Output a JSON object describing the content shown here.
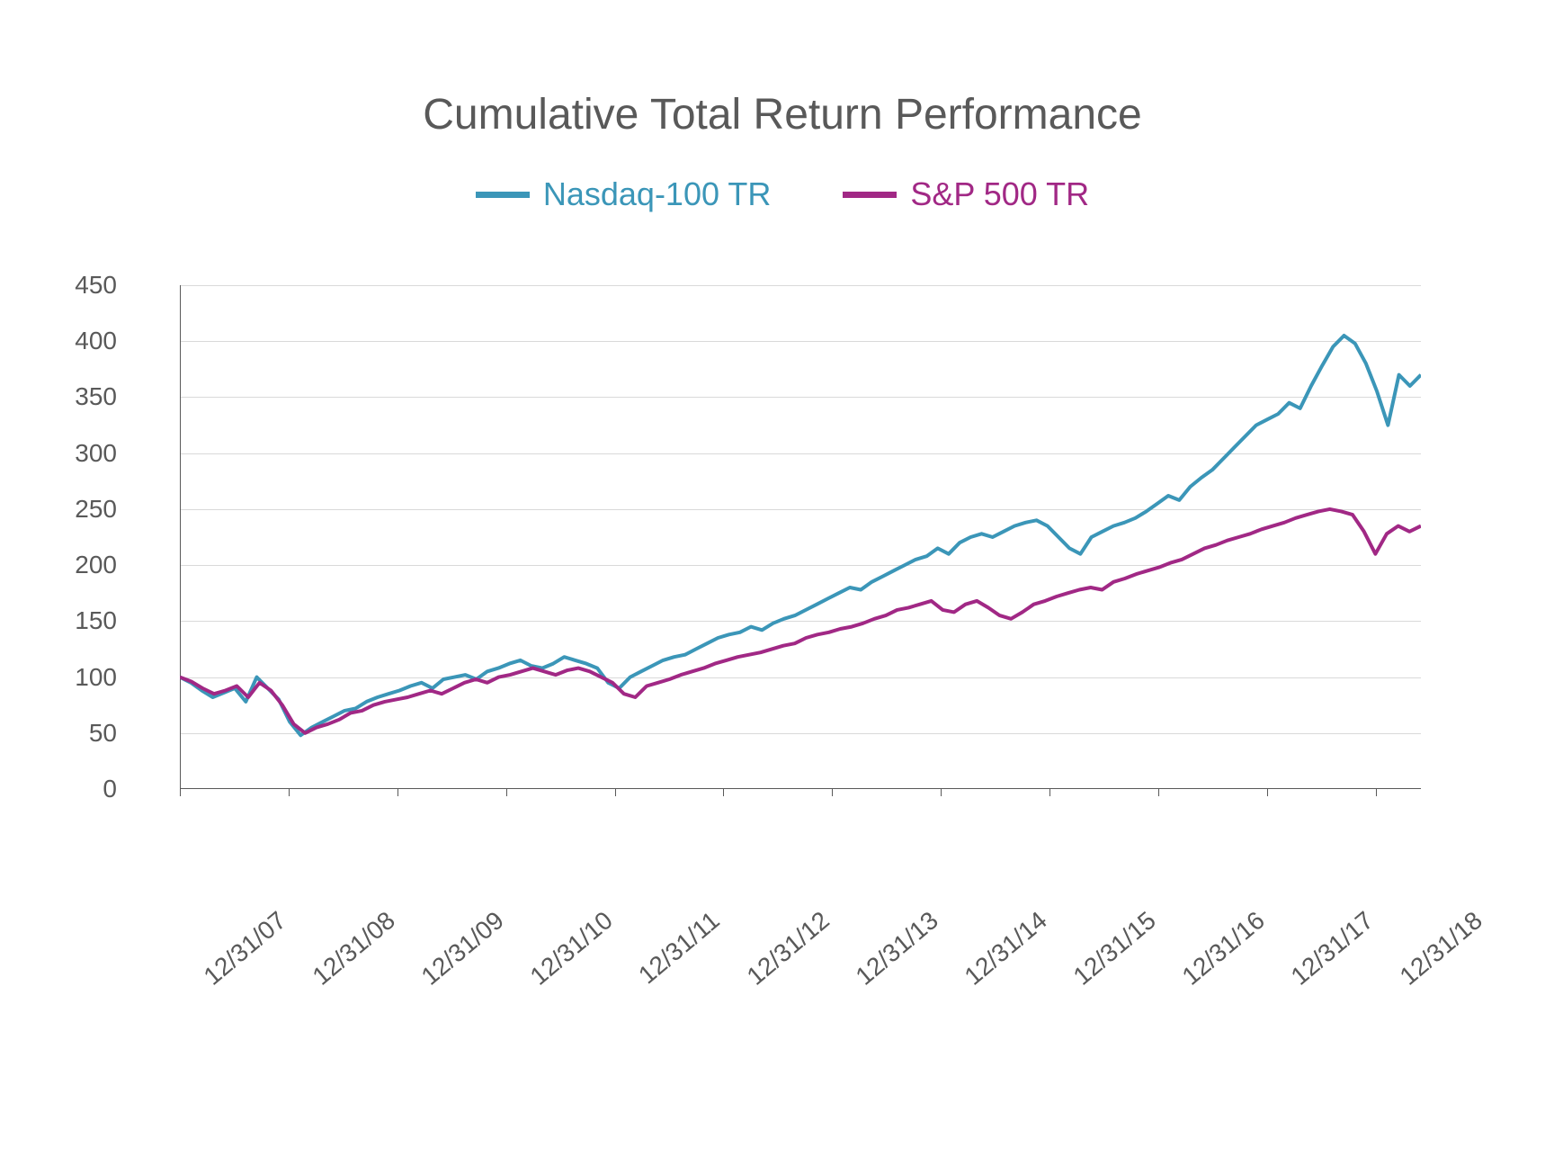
{
  "chart": {
    "type": "line",
    "title": "Cumulative Total Return Performance",
    "title_color": "#595959",
    "title_fontsize": 48,
    "background_color": "#ffffff",
    "grid_color": "#d9d9d9",
    "axis_color": "#595959",
    "label_color": "#595959",
    "label_fontsize": 28,
    "ylim": [
      0,
      450
    ],
    "ytick_step": 50,
    "yticks": [
      0,
      50,
      100,
      150,
      200,
      250,
      300,
      350,
      400,
      450
    ],
    "xticks": [
      "12/31/07",
      "12/31/08",
      "12/31/09",
      "12/31/10",
      "12/31/11",
      "12/31/12",
      "12/31/13",
      "12/31/14",
      "12/31/15",
      "12/31/16",
      "12/31/17",
      "12/31/18"
    ],
    "line_width": 4,
    "legend_position": "top-center",
    "legend_fontsize": 36,
    "series": [
      {
        "name": "Nasdaq-100 TR",
        "color": "#3b96b8",
        "data": [
          100,
          95,
          88,
          82,
          86,
          90,
          78,
          100,
          90,
          80,
          60,
          48,
          55,
          60,
          65,
          70,
          72,
          78,
          82,
          85,
          88,
          92,
          95,
          90,
          98,
          100,
          102,
          98,
          105,
          108,
          112,
          115,
          110,
          108,
          112,
          118,
          115,
          112,
          108,
          95,
          90,
          100,
          105,
          110,
          115,
          118,
          120,
          125,
          130,
          135,
          138,
          140,
          145,
          142,
          148,
          152,
          155,
          160,
          165,
          170,
          175,
          180,
          178,
          185,
          190,
          195,
          200,
          205,
          208,
          215,
          210,
          220,
          225,
          228,
          225,
          230,
          235,
          238,
          240,
          235,
          225,
          215,
          210,
          225,
          230,
          235,
          238,
          242,
          248,
          255,
          262,
          258,
          270,
          278,
          285,
          295,
          305,
          315,
          325,
          330,
          335,
          345,
          340,
          360,
          378,
          395,
          405,
          398,
          380,
          355,
          325,
          370,
          360,
          370
        ]
      },
      {
        "name": "S&P 500 TR",
        "color": "#a12885",
        "data": [
          100,
          96,
          90,
          85,
          88,
          92,
          82,
          95,
          88,
          75,
          58,
          50,
          55,
          58,
          62,
          68,
          70,
          75,
          78,
          80,
          82,
          85,
          88,
          85,
          90,
          95,
          98,
          95,
          100,
          102,
          105,
          108,
          105,
          102,
          106,
          108,
          105,
          100,
          95,
          85,
          82,
          92,
          95,
          98,
          102,
          105,
          108,
          112,
          115,
          118,
          120,
          122,
          125,
          128,
          130,
          135,
          138,
          140,
          143,
          145,
          148,
          152,
          155,
          160,
          162,
          165,
          168,
          160,
          158,
          165,
          168,
          162,
          155,
          152,
          158,
          165,
          168,
          172,
          175,
          178,
          180,
          178,
          185,
          188,
          192,
          195,
          198,
          202,
          205,
          210,
          215,
          218,
          222,
          225,
          228,
          232,
          235,
          238,
          242,
          245,
          248,
          250,
          248,
          245,
          230,
          210,
          228,
          235,
          230,
          235
        ]
      }
    ]
  }
}
